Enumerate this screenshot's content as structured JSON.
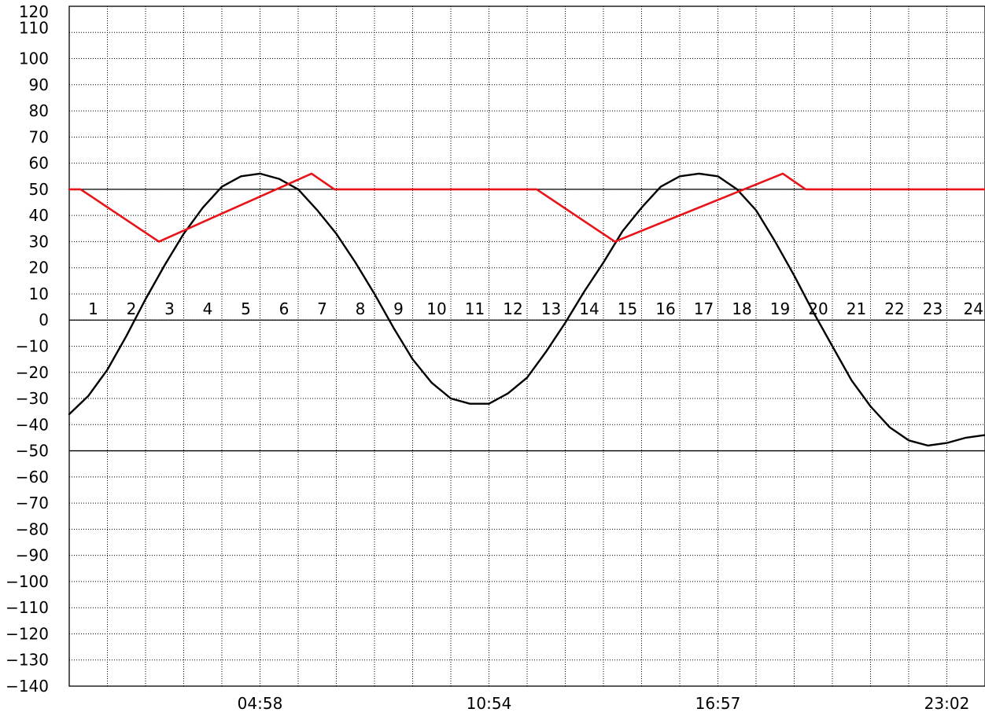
{
  "chart_data": {
    "type": "line",
    "grid": true,
    "ylim": [
      -140,
      120
    ],
    "xlim": [
      0,
      24
    ],
    "y_ticks": [
      -140,
      -130,
      -120,
      -110,
      -100,
      -90,
      -80,
      -70,
      -60,
      -50,
      -40,
      -30,
      -20,
      -10,
      0,
      10,
      20,
      30,
      40,
      50,
      60,
      70,
      80,
      90,
      100,
      110,
      120
    ],
    "hour_labels": [
      "1",
      "2",
      "3",
      "4",
      "5",
      "6",
      "7",
      "8",
      "9",
      "10",
      "11",
      "12",
      "13",
      "14",
      "15",
      "16",
      "17",
      "18",
      "19",
      "20",
      "21",
      "22",
      "23",
      "24"
    ],
    "time_labels": [
      {
        "x": 5.0,
        "label": "04:58"
      },
      {
        "x": 11.0,
        "label": "10:54"
      },
      {
        "x": 17.0,
        "label": "16:57"
      },
      {
        "x": 23.0,
        "label": "23:02"
      }
    ],
    "reference_lines": [
      50,
      0,
      -50
    ],
    "line_colors": {
      "tide": "#000000",
      "level": "#e8141a"
    },
    "series": [
      {
        "key": "tide",
        "x": [
          0,
          0.5,
          1,
          1.5,
          2,
          2.5,
          3,
          3.5,
          4,
          4.5,
          5,
          5.5,
          6,
          6.5,
          7,
          7.5,
          8,
          8.5,
          9,
          9.5,
          10,
          10.5,
          11,
          11.5,
          12,
          12.5,
          13,
          13.5,
          14,
          14.5,
          15,
          15.5,
          16,
          16.5,
          17,
          17.5,
          18,
          18.5,
          19,
          19.5,
          20,
          20.5,
          21,
          21.5,
          22,
          22.5,
          23,
          23.5,
          24
        ],
        "values": [
          -36,
          -29,
          -19,
          -6,
          8,
          21,
          33,
          43,
          51,
          55,
          56,
          54,
          50,
          42,
          33,
          22,
          10,
          -3,
          -15,
          -24,
          -30,
          -32,
          -32,
          -28,
          -22,
          -12,
          -1,
          11,
          22,
          34,
          43,
          51,
          55,
          56,
          55,
          50,
          42,
          30,
          17,
          3,
          -10,
          -23,
          -33,
          -41,
          -46,
          -48,
          -47,
          -45,
          -44
        ]
      },
      {
        "key": "level",
        "x": [
          0,
          0.3,
          2.35,
          6.35,
          6.95,
          12.25,
          14.3,
          18.7,
          19.3,
          24
        ],
        "values": [
          50,
          50,
          30,
          56,
          50,
          50,
          30,
          56,
          50,
          50
        ]
      }
    ]
  }
}
